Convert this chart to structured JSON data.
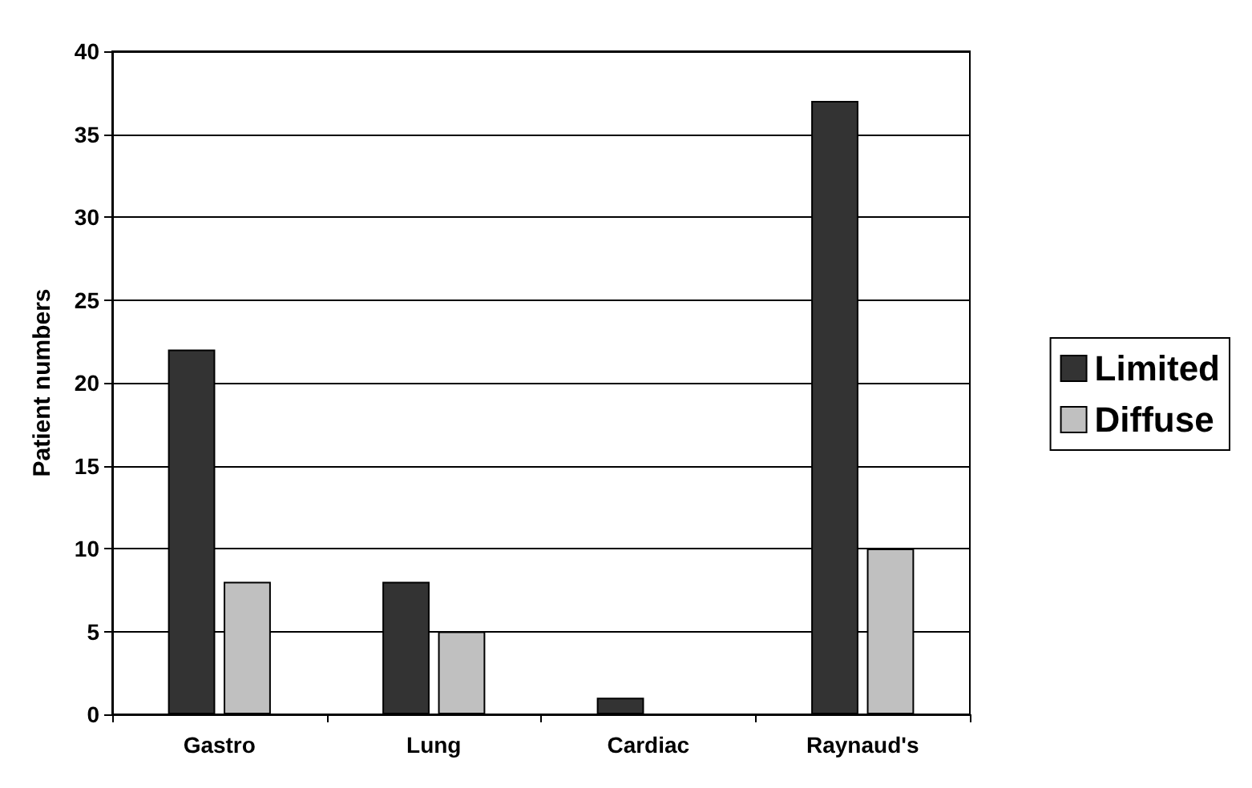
{
  "chart_data": {
    "type": "bar",
    "ylabel": "Patient numbers",
    "categories": [
      "Gastro",
      "Lung",
      "Cardiac",
      "Raynaud's"
    ],
    "series": [
      {
        "name": "Limited",
        "color": "#333333",
        "values": [
          22,
          8,
          1,
          37
        ]
      },
      {
        "name": "Diffuse",
        "color": "#c0c0c0",
        "values": [
          8,
          5,
          null,
          10
        ]
      }
    ],
    "ylim": [
      0,
      40
    ],
    "yticks": [
      0,
      5,
      10,
      15,
      20,
      25,
      30,
      35,
      40
    ],
    "grid": "y",
    "legend": "right"
  }
}
